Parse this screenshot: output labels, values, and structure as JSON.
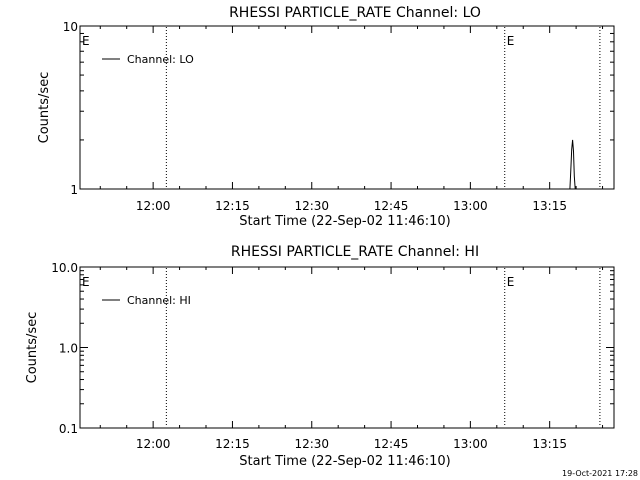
{
  "footer": {
    "timestamp": "19-Oct-2021 17:28"
  },
  "chart_data": [
    {
      "type": "line",
      "title": "RHESSI PARTICLE_RATE Channel: LO",
      "xlabel": "Start Time (22-Sep-02 11:46:10)",
      "ylabel": "Counts/sec",
      "x_tick_labels": [
        "12:00",
        "12:15",
        "12:30",
        "12:45",
        "13:00",
        "13:15"
      ],
      "xlim": [
        "11:46:10",
        "13:27:10"
      ],
      "yscale": "log",
      "ylim": [
        1,
        10
      ],
      "y_tick_labels": [
        "1",
        "10"
      ],
      "y_tick_values": [
        1,
        10
      ],
      "legend_position": "top-left",
      "series": [
        {
          "name": "Channel: LO",
          "x": [
            "13:18:50",
            "13:19:00",
            "13:19:10",
            "13:19:20",
            "13:19:30",
            "13:19:40",
            "13:19:50"
          ],
          "y": [
            1,
            1.3,
            1.75,
            2,
            1.7,
            1.2,
            1
          ]
        }
      ],
      "vlines": [
        "12:02:30",
        "13:06:30",
        "13:24:30"
      ],
      "markers": [
        {
          "text": "E",
          "x": "11:46:10"
        },
        {
          "text": "E",
          "x": "13:06:30"
        }
      ]
    },
    {
      "type": "line",
      "title": "RHESSI PARTICLE_RATE Channel: HI",
      "xlabel": "Start Time (22-Sep-02 11:46:10)",
      "ylabel": "Counts/sec",
      "x_tick_labels": [
        "12:00",
        "12:15",
        "12:30",
        "12:45",
        "13:00",
        "13:15"
      ],
      "xlim": [
        "11:46:10",
        "13:27:10"
      ],
      "yscale": "log",
      "ylim": [
        0.1,
        10
      ],
      "y_tick_labels": [
        "0.1",
        "1.0",
        "10.0"
      ],
      "y_tick_values": [
        0.1,
        1,
        10
      ],
      "legend_position": "top-left",
      "series": [
        {
          "name": "Channel: HI",
          "x": [],
          "y": []
        }
      ],
      "vlines": [
        "12:02:30",
        "13:06:30",
        "13:24:30"
      ],
      "markers": [
        {
          "text": "E",
          "x": "11:46:10"
        },
        {
          "text": "E",
          "x": "13:06:30"
        }
      ]
    }
  ]
}
